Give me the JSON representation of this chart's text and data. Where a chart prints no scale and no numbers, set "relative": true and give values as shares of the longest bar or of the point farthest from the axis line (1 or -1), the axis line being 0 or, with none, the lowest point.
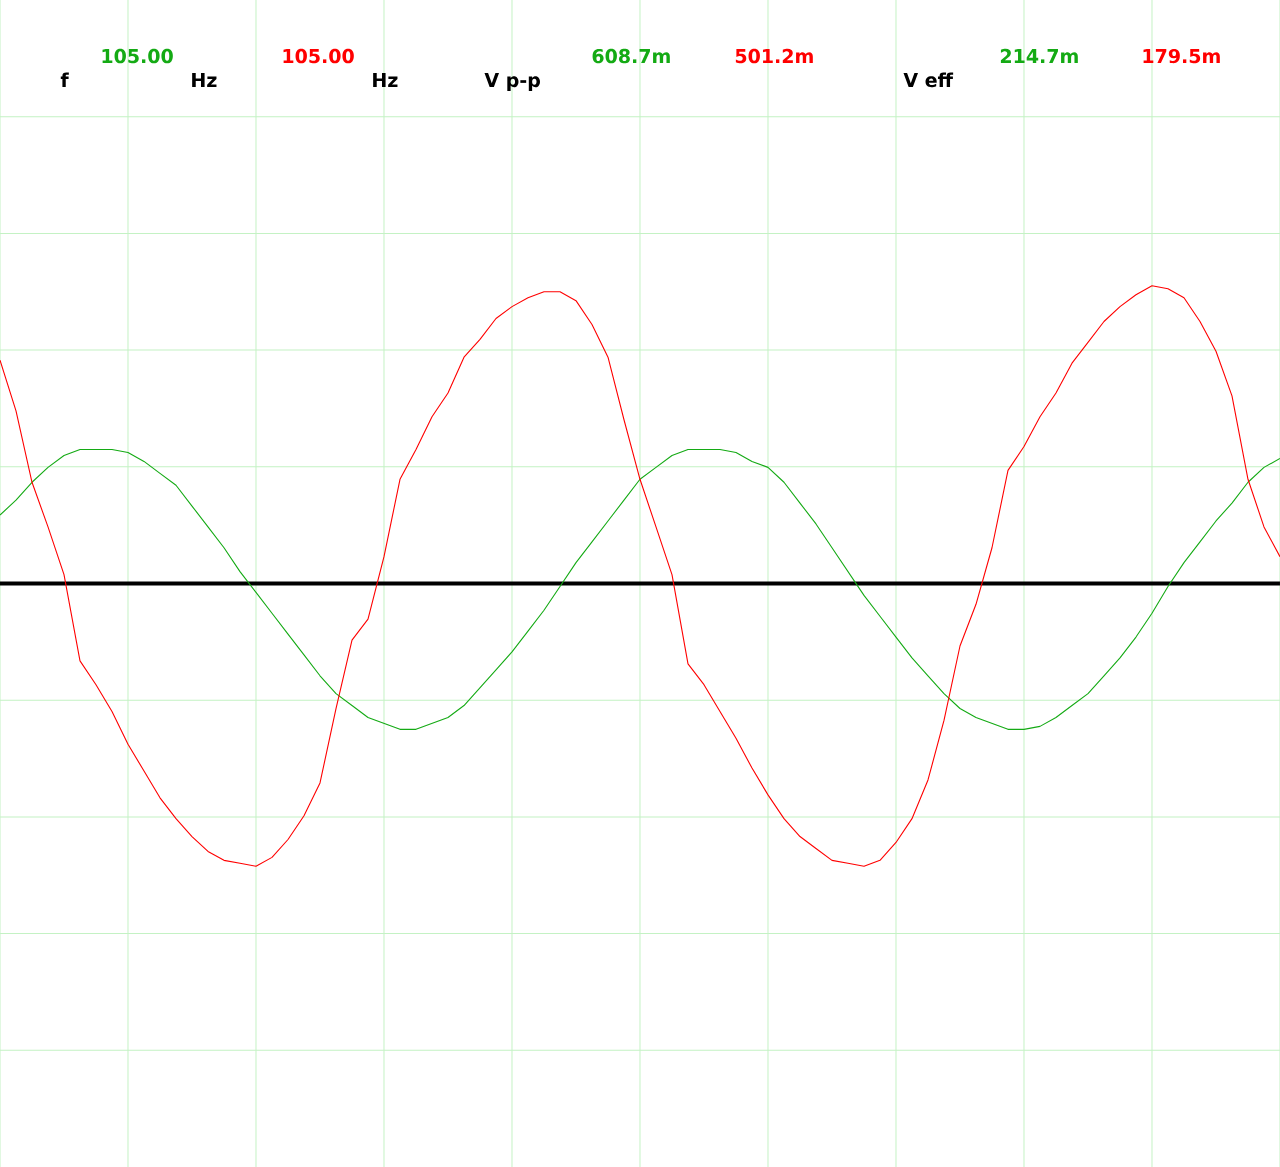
{
  "chart_data": {
    "type": "line",
    "relative": true,
    "grid": true,
    "tick_labels": false,
    "categories": [
      null,
      null,
      null,
      null,
      null,
      null,
      null,
      null,
      null,
      null,
      null,
      null,
      null,
      null,
      null,
      null,
      null,
      null,
      null,
      null,
      null,
      null,
      null,
      null,
      null,
      null,
      null,
      null,
      null,
      null,
      null,
      null,
      null,
      null,
      null,
      null,
      null,
      null,
      null,
      null,
      null,
      null,
      null,
      null,
      null,
      null,
      null,
      null,
      null,
      null,
      null,
      null,
      null,
      null,
      null,
      null,
      null,
      null,
      null,
      null,
      null,
      null,
      null,
      null,
      null,
      null,
      null,
      null,
      null,
      null,
      null,
      null,
      null,
      null,
      null,
      null,
      null,
      null,
      null,
      null,
      null
    ],
    "series": [
      {
        "color": "#14aa14",
        "values": [
          0.23,
          0.28,
          0.34,
          0.39,
          0.43,
          0.45,
          0.45,
          0.45,
          0.44,
          0.41,
          0.37,
          0.33,
          0.26,
          0.19,
          0.12,
          0.04,
          -0.03,
          -0.1,
          -0.17,
          -0.24,
          -0.31,
          -0.37,
          -0.41,
          -0.45,
          -0.47,
          -0.49,
          -0.49,
          -0.47,
          -0.45,
          -0.41,
          -0.35,
          -0.29,
          -0.23,
          -0.16,
          -0.09,
          -0.01,
          0.07,
          0.14,
          0.21,
          0.28,
          0.35,
          0.39,
          0.43,
          0.45,
          0.45,
          0.45,
          0.44,
          0.41,
          0.39,
          0.34,
          0.27,
          0.2,
          0.12,
          0.04,
          -0.04,
          -0.11,
          -0.18,
          -0.25,
          -0.31,
          -0.37,
          -0.42,
          -0.45,
          -0.47,
          -0.49,
          -0.49,
          -0.48,
          -0.45,
          -0.41,
          -0.37,
          -0.31,
          -0.25,
          -0.18,
          -0.1,
          -0.01,
          0.07,
          0.14,
          0.21,
          0.27,
          0.34,
          0.39,
          0.42
        ]
      },
      {
        "color": "#ff0000",
        "values": [
          0.75,
          0.58,
          0.34,
          0.19,
          0.03,
          -0.26,
          -0.34,
          -0.43,
          -0.54,
          -0.63,
          -0.72,
          -0.79,
          -0.85,
          -0.9,
          -0.93,
          -0.94,
          -0.95,
          -0.92,
          -0.86,
          -0.78,
          -0.67,
          -0.42,
          -0.19,
          -0.12,
          0.09,
          0.35,
          0.45,
          0.56,
          0.64,
          0.76,
          0.82,
          0.89,
          0.93,
          0.96,
          0.98,
          0.98,
          0.95,
          0.87,
          0.76,
          0.55,
          0.35,
          0.19,
          0.03,
          -0.27,
          -0.34,
          -0.43,
          -0.52,
          -0.62,
          -0.71,
          -0.79,
          -0.85,
          -0.89,
          -0.93,
          -0.94,
          -0.95,
          -0.93,
          -0.87,
          -0.79,
          -0.66,
          -0.46,
          -0.21,
          -0.07,
          0.12,
          0.38,
          0.46,
          0.56,
          0.64,
          0.74,
          0.81,
          0.88,
          0.93,
          0.97,
          1,
          0.99,
          0.96,
          0.88,
          0.78,
          0.63,
          0.35,
          0.19,
          0.09
        ]
      }
    ],
    "annotations": [
      "f",
      "105.00",
      "Hz",
      "105.00",
      "Hz",
      "V p-p",
      "608.7m",
      "501.2m",
      "V eff",
      "214.7m",
      "179.5m"
    ]
  }
}
